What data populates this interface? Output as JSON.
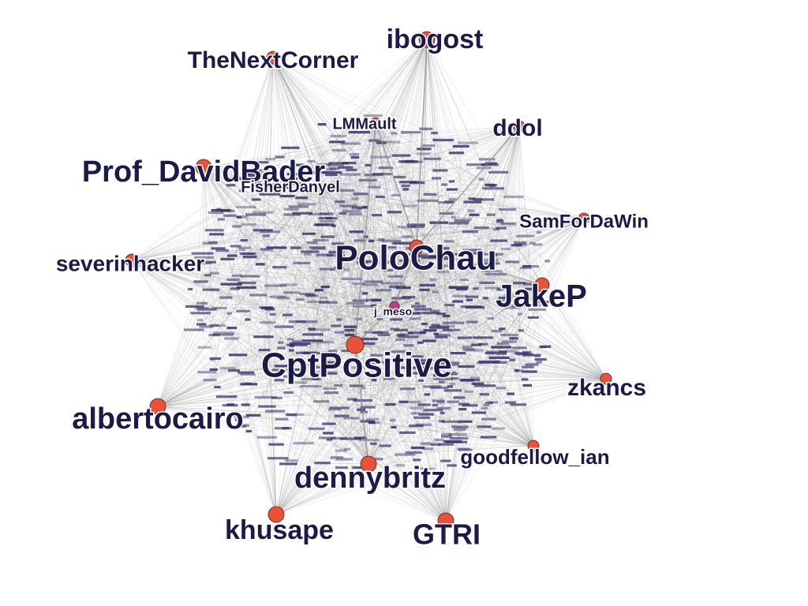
{
  "graph": {
    "node_color": "#e8523a",
    "center_node_color": "#b8408c",
    "label_color": "#1c1a48",
    "edge_color": "#9a9a9a",
    "hubs": [
      {
        "id": "ibogost",
        "label": "ibogost"
      },
      {
        "id": "thenextcorner",
        "label": "TheNextCorner"
      },
      {
        "id": "lmmault",
        "label": "LMMault"
      },
      {
        "id": "ddol",
        "label": "ddol"
      },
      {
        "id": "prof-davidbader",
        "label": "Prof_DavidBader"
      },
      {
        "id": "fishedanyel",
        "label": "FisherDanyel"
      },
      {
        "id": "samfordawin",
        "label": "SamForDaWin"
      },
      {
        "id": "severinhacker",
        "label": "severinhacker"
      },
      {
        "id": "polochau",
        "label": "PoloChau"
      },
      {
        "id": "jakep",
        "label": "JakeP"
      },
      {
        "id": "jmeso",
        "label": "j_meso"
      },
      {
        "id": "cptpositive",
        "label": "CptPositive"
      },
      {
        "id": "zkancs",
        "label": "zkancs"
      },
      {
        "id": "albertocairo",
        "label": "albertocairo"
      },
      {
        "id": "goodfellow-ian",
        "label": "goodfellow_ian"
      },
      {
        "id": "dennybritz",
        "label": "dennybritz"
      },
      {
        "id": "khusape",
        "label": "khusape"
      },
      {
        "id": "gtri",
        "label": "GTRI"
      }
    ]
  }
}
